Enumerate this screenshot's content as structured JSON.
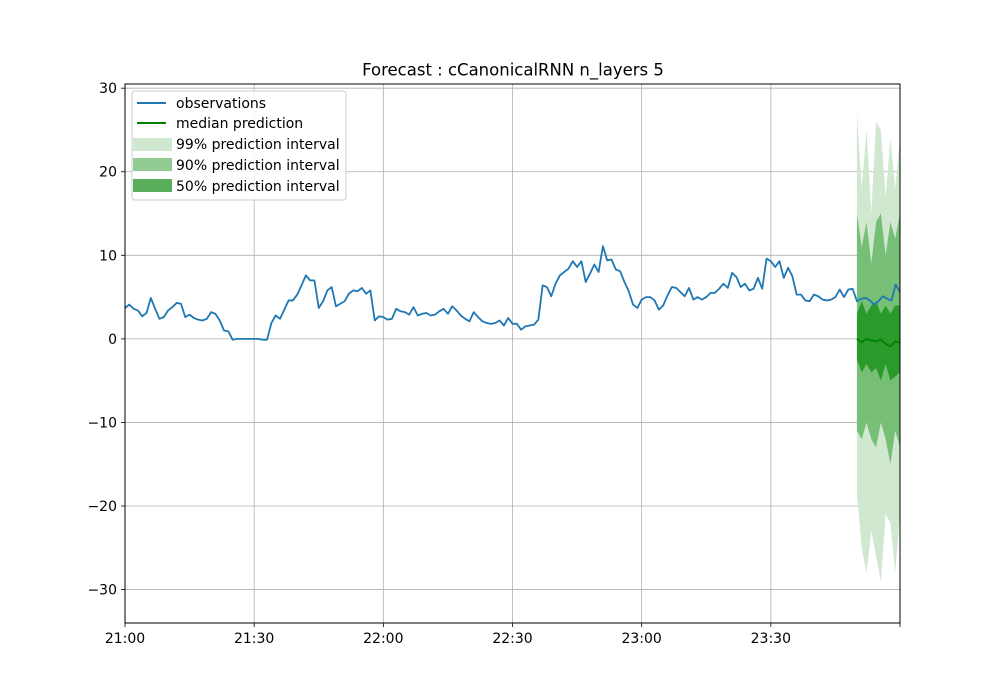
{
  "chart_data": {
    "type": "line",
    "title": "Forecast : cCanonicalRNN n_layers 5",
    "xlabel": "",
    "ylabel": "",
    "x_ticks": [
      "21:00",
      "21:30",
      "22:00",
      "22:30",
      "23:00",
      "23:30"
    ],
    "y_ticks": [
      "−30",
      "−20",
      "−10",
      "0",
      "10",
      "20",
      "30"
    ],
    "xlim_minutes_after_21_00": [
      0,
      180
    ],
    "ylim": [
      -34,
      30.5
    ],
    "grid": true,
    "legend_position": "top-left",
    "colors": {
      "observations": "#1f77b4",
      "median": "#008000",
      "band99": "#cfe8cf",
      "band90": "#77bf77",
      "band50": "#2a9a2a"
    },
    "observations": {
      "name": "observations",
      "y": [
        3.7,
        4.1,
        3.6,
        3.4,
        2.7,
        3.1,
        4.9,
        3.6,
        2.4,
        2.6,
        3.4,
        3.8,
        4.3,
        4.2,
        2.6,
        2.9,
        2.5,
        2.3,
        2.2,
        2.4,
        3.2,
        3.0,
        2.2,
        1.0,
        0.9,
        -0.1,
        0.0,
        0.0,
        0.0,
        0.0,
        0.0,
        0.0,
        -0.1,
        -0.1,
        1.9,
        2.8,
        2.4,
        3.5,
        4.6,
        4.6,
        5.3,
        6.4,
        7.6,
        7.0,
        7.0,
        3.7,
        4.5,
        5.8,
        6.2,
        3.9,
        4.2,
        4.5,
        5.4,
        5.8,
        5.7,
        6.1,
        5.4,
        5.8,
        2.2,
        2.7,
        2.6,
        2.3,
        2.4,
        3.6,
        3.3,
        3.2,
        2.9,
        3.8,
        2.8,
        3.0,
        3.1,
        2.8,
        2.9,
        3.3,
        3.6,
        3.0,
        3.9,
        3.4,
        2.8,
        2.4,
        2.1,
        3.2,
        2.6,
        2.1,
        1.9,
        1.8,
        1.9,
        2.2,
        1.6,
        2.5,
        1.8,
        1.8,
        1.1,
        1.5,
        1.6,
        1.7,
        2.3,
        6.4,
        6.2,
        5.1,
        6.6,
        7.6,
        8.0,
        8.4,
        9.3,
        8.6,
        9.3,
        6.8,
        7.8,
        8.9,
        8.0,
        11.1,
        9.4,
        9.5,
        8.3,
        8.1,
        6.8,
        5.7,
        4.1,
        3.7,
        4.7,
        5.0,
        5.0,
        4.6,
        3.5,
        4.0,
        5.2,
        6.2,
        6.1,
        5.6,
        5.1,
        6.1,
        4.7,
        5.0,
        4.7,
        5.0,
        5.5,
        5.5,
        6.0,
        6.6,
        6.1,
        7.9,
        7.4,
        6.2,
        6.6,
        5.8,
        6.0,
        7.3,
        6.0,
        9.6,
        9.3,
        8.6,
        9.3,
        7.3,
        8.5,
        7.5,
        5.3,
        5.3,
        4.6,
        4.5,
        5.3,
        5.1,
        4.7,
        4.6,
        4.7,
        5.0,
        5.9,
        5.0,
        5.9,
        6.0,
        4.5,
        4.8,
        4.9,
        4.6,
        4.1,
        4.5,
        5.1,
        4.8,
        4.6,
        6.5,
        5.6
      ]
    },
    "forecast": {
      "start_minutes_after_21_00": 170,
      "step_minutes": 1,
      "median": {
        "name": "median prediction",
        "y": [
          0.0,
          -0.4,
          0.0,
          -0.2,
          -0.3,
          -0.1,
          -0.6,
          -0.9,
          -0.3,
          -0.5
        ]
      },
      "bands": [
        {
          "name": "99% prediction interval",
          "low": [
            -18.5,
            -25,
            -28,
            -23,
            -26,
            -29,
            -21,
            -22,
            -28,
            -21
          ],
          "high": [
            27,
            18,
            25,
            15,
            26,
            25,
            17,
            24,
            18,
            24
          ]
        },
        {
          "name": "90% prediction interval",
          "low": [
            -11,
            -12,
            -10,
            -12,
            -13,
            -10,
            -12,
            -15,
            -11,
            -13
          ],
          "high": [
            15,
            11,
            14,
            9,
            14,
            15,
            10,
            14,
            12,
            15
          ]
        },
        {
          "name": "50% prediction interval",
          "low": [
            -2.5,
            -4,
            -3,
            -4,
            -3.5,
            -5,
            -3,
            -5,
            -4.5,
            -4
          ],
          "high": [
            3,
            4.5,
            3,
            4,
            4.5,
            3,
            4,
            3,
            4,
            4
          ]
        }
      ]
    }
  }
}
